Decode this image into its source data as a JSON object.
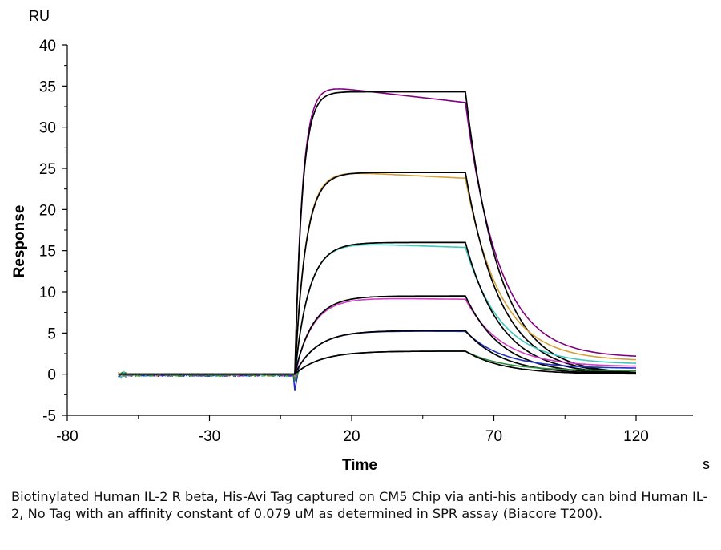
{
  "chart_data": {
    "type": "line",
    "xlabel": "Time",
    "ylabel": "Response",
    "x_unit": "s",
    "y_unit": "RU",
    "xlim": [
      -80,
      140
    ],
    "ylim": [
      -5,
      40
    ],
    "x_ticks": [
      -80,
      -30,
      20,
      70,
      120
    ],
    "y_ticks": [
      -5,
      0,
      5,
      10,
      15,
      20,
      25,
      30,
      35,
      40
    ],
    "grid": false,
    "legend": "none",
    "kinetics": {
      "baseline_start": -62,
      "injection_start": 0,
      "injection_end": 60,
      "end": 120
    },
    "series": [
      {
        "color": "#800080",
        "kind": "data",
        "plateau": 35.0,
        "ka": 0.38,
        "kd": 0.085,
        "baseline_after": 2.0,
        "drift_to": 33.0
      },
      {
        "color": "#000000",
        "kind": "fit",
        "plateau": 34.3,
        "ka": 0.38,
        "kd": 0.085,
        "baseline_after": 0.0,
        "drift_to": 34.3
      },
      {
        "color": "#d4a03a",
        "kind": "data",
        "plateau": 24.7,
        "ka": 0.26,
        "kd": 0.082,
        "baseline_after": 1.6,
        "drift_to": 23.8
      },
      {
        "color": "#000000",
        "kind": "fit",
        "plateau": 24.5,
        "ka": 0.26,
        "kd": 0.082,
        "baseline_after": 0.0,
        "drift_to": 24.5
      },
      {
        "color": "#40c8c0",
        "kind": "data",
        "plateau": 16.0,
        "ka": 0.2,
        "kd": 0.08,
        "baseline_after": 1.2,
        "drift_to": 15.4
      },
      {
        "color": "#000000",
        "kind": "fit",
        "plateau": 16.0,
        "ka": 0.2,
        "kd": 0.08,
        "baseline_after": 0.0,
        "drift_to": 16.0
      },
      {
        "color": "#d040c8",
        "kind": "data",
        "plateau": 9.3,
        "ka": 0.16,
        "kd": 0.078,
        "baseline_after": 0.9,
        "drift_to": 9.1
      },
      {
        "color": "#000000",
        "kind": "fit",
        "plateau": 9.5,
        "ka": 0.16,
        "kd": 0.078,
        "baseline_after": 0.0,
        "drift_to": 9.5
      },
      {
        "color": "#2030c0",
        "kind": "data",
        "plateau": 5.3,
        "ka": 0.13,
        "kd": 0.076,
        "baseline_after": 0.7,
        "drift_to": 5.2
      },
      {
        "color": "#000000",
        "kind": "fit",
        "plateau": 5.3,
        "ka": 0.13,
        "kd": 0.076,
        "baseline_after": 0.0,
        "drift_to": 5.3
      },
      {
        "color": "#2e8b3a",
        "kind": "data",
        "plateau": 2.8,
        "ka": 0.11,
        "kd": 0.075,
        "baseline_after": 0.4,
        "drift_to": 2.8
      },
      {
        "color": "#000000",
        "kind": "fit",
        "plateau": 2.8,
        "ka": 0.11,
        "kd": 0.075,
        "baseline_after": 0.0,
        "drift_to": 2.8
      }
    ]
  },
  "caption": "Biotinylated Human IL-2 R beta, His-Avi Tag captured on CM5 Chip via anti-his antibody can bind Human IL-2, No Tag with an affinity constant of 0.079 uM as determined in SPR assay (Biacore T200)."
}
